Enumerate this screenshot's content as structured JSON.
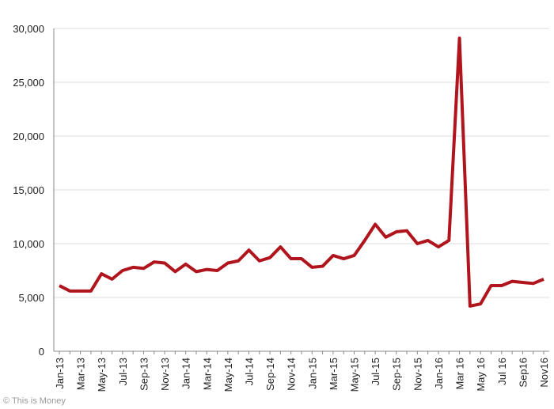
{
  "chart_data": {
    "type": "line",
    "categories": [
      "Jan-13",
      null,
      "Mar-13",
      null,
      "May-13",
      null,
      "Jul-13",
      null,
      "Sep-13",
      null,
      "Nov-13",
      null,
      "Jan-14",
      null,
      "Mar-14",
      null,
      "May-14",
      null,
      "Jul-14",
      null,
      "Sep-14",
      null,
      "Nov-14",
      null,
      "Jan-15",
      null,
      "Mar-15",
      null,
      "May-15",
      null,
      "Jul-15",
      null,
      "Sep-15",
      null,
      "Nov-15",
      null,
      "Jan-16",
      null,
      "Mar 16",
      null,
      "May 16",
      null,
      "Jul 16",
      null,
      "Sep16",
      null,
      "Nov16"
    ],
    "series": [
      {
        "color": "#b0141c",
        "values": [
          6100,
          5600,
          5600,
          5600,
          7200,
          6700,
          7500,
          7800,
          7700,
          8300,
          8200,
          7400,
          8100,
          7400,
          7600,
          7500,
          8200,
          8400,
          9400,
          8400,
          8700,
          9700,
          8600,
          8600,
          7800,
          7900,
          8900,
          8600,
          8900,
          10300,
          11800,
          10600,
          11100,
          11200,
          10000,
          10300,
          9700,
          10300,
          29100,
          4200,
          4400,
          6100,
          6100,
          6500,
          6400,
          6300,
          6700
        ]
      }
    ],
    "ylim": [
      0,
      30000
    ],
    "yticks": [
      0,
      {
        "value": 5000,
        "label": "5,000"
      },
      {
        "value": 10000,
        "label": "10,000"
      },
      {
        "value": 15000,
        "label": "15,000"
      },
      {
        "value": 20000,
        "label": "20,000"
      },
      {
        "value": 25000,
        "label": "25,000"
      },
      {
        "value": 30000,
        "label": "30,000"
      }
    ],
    "grid": true,
    "source": "© This is Money"
  }
}
